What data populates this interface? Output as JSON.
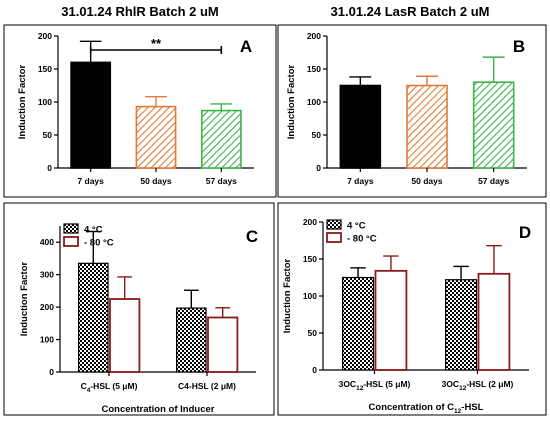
{
  "titles": [
    "31.01.24 RhlR Batch 2 uM",
    "31.01.24 LasR Batch 2 uM"
  ],
  "chart_data": [
    {
      "panel": "A",
      "type": "bar",
      "categories": [
        "7 days",
        "50 days",
        "57 days"
      ],
      "values": [
        160,
        93,
        87
      ],
      "errors": [
        32,
        15,
        10
      ],
      "ylabel": "Induction Factor",
      "ylim": [
        0,
        200
      ],
      "yticks": [
        0,
        50,
        100,
        150,
        200
      ],
      "bar_colors": [
        "#000000",
        "#e07b39",
        "#3cb44b"
      ],
      "bar_patterns": [
        "solid",
        "hatch",
        "hatch"
      ],
      "significance": {
        "from": 0,
        "to": 2,
        "label": "**"
      }
    },
    {
      "panel": "B",
      "type": "bar",
      "categories": [
        "7 days",
        "50 days",
        "57 days"
      ],
      "values": [
        125,
        125,
        130
      ],
      "errors": [
        13,
        14,
        38
      ],
      "ylabel": "Induction Factor",
      "ylim": [
        0,
        200
      ],
      "yticks": [
        0,
        50,
        100,
        150,
        200
      ],
      "bar_colors": [
        "#000000",
        "#e07b39",
        "#3cb44b"
      ],
      "bar_patterns": [
        "solid",
        "hatch",
        "hatch"
      ]
    },
    {
      "panel": "C",
      "type": "bar",
      "categories": [
        "C4-HSL (5 μM)",
        "C4-HSL (2 μM)"
      ],
      "category_labels": [
        {
          "pre": "C",
          "sub": "4",
          "post": "-HSL (5 μM)"
        },
        {
          "pre": "C4-HSL (2 μM)",
          "sub": "",
          "post": ""
        }
      ],
      "series": [
        {
          "name": "4 °C",
          "values": [
            335,
            197
          ],
          "errors": [
            98,
            55
          ],
          "color": "#000000",
          "pattern": "checker"
        },
        {
          "name": "- 80 °C",
          "values": [
            225,
            168
          ],
          "errors": [
            68,
            30
          ],
          "color": "#8b1a1a",
          "pattern": "outline"
        }
      ],
      "xlabel": "Concentration of Inducer",
      "xlabel_parts": {
        "pre": "Concentration of Inducer",
        "sub": "",
        "post": ""
      },
      "ylabel": "Induction Factor",
      "ylim": [
        0,
        450
      ],
      "yticks": [
        0,
        100,
        200,
        300,
        400
      ],
      "legend": "top-left"
    },
    {
      "panel": "D",
      "type": "bar",
      "categories": [
        "3OC12-HSL (5 μM)",
        "3OC12-HSL (2 μM)"
      ],
      "category_labels": [
        {
          "pre": "3OC",
          "sub": "12",
          "post": "-HSL (5 μM)"
        },
        {
          "pre": "3OC",
          "sub": "12",
          "post": "-HSL (2 μM)"
        }
      ],
      "series": [
        {
          "name": "4 °C",
          "values": [
            125,
            122
          ],
          "errors": [
            13,
            18
          ],
          "color": "#000000",
          "pattern": "checker"
        },
        {
          "name": "- 80 °C",
          "values": [
            134,
            130
          ],
          "errors": [
            20,
            38
          ],
          "color": "#8b1a1a",
          "pattern": "outline"
        }
      ],
      "xlabel": "Concentration of C12-HSL",
      "xlabel_parts": {
        "pre": "Concentration of C",
        "sub": "12",
        "post": "-HSL"
      },
      "ylabel": "Induction Factor",
      "ylim": [
        0,
        200
      ],
      "yticks": [
        0,
        50,
        100,
        150,
        200
      ],
      "legend": "top-left"
    }
  ]
}
